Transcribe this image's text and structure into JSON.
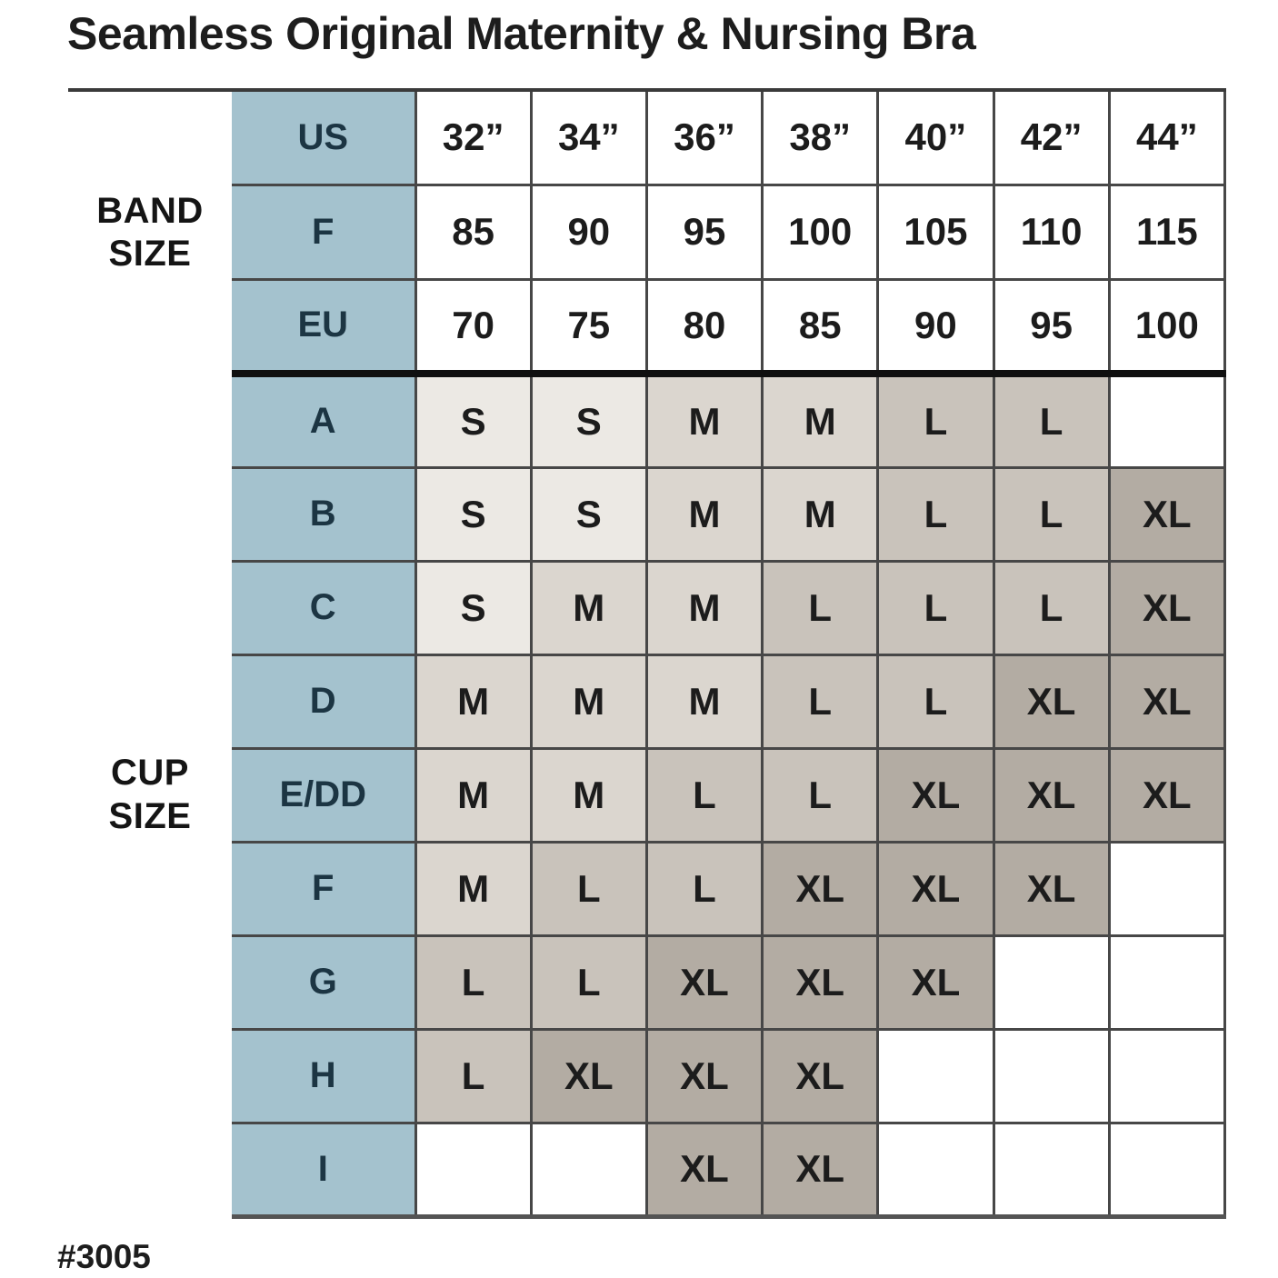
{
  "title": "Seamless Original Maternity & Nursing Bra",
  "footnote": "#3005",
  "colors": {
    "label_column_blue": "#A4C2CE",
    "label_text": "#1C3543",
    "size_s": "#ECE9E4",
    "size_m": "#DBD6CF",
    "size_l": "#C9C3BB",
    "size_xl": "#B3ACA3",
    "grid_line": "#474747",
    "thick_divider": "#101010"
  },
  "chart_data": {
    "type": "table",
    "title": "Seamless Original Maternity & Nursing Bra",
    "band_section": {
      "label": "BAND SIZE",
      "rows": [
        {
          "label": "US",
          "values": [
            "32”",
            "34”",
            "36”",
            "38”",
            "40”",
            "42”",
            "44”"
          ]
        },
        {
          "label": "F",
          "values": [
            "85",
            "90",
            "95",
            "100",
            "105",
            "110",
            "115"
          ]
        },
        {
          "label": "EU",
          "values": [
            "70",
            "75",
            "80",
            "85",
            "90",
            "95",
            "100"
          ]
        }
      ]
    },
    "cup_section": {
      "label": "CUP SIZE",
      "rows": [
        {
          "label": "A",
          "values": [
            "S",
            "S",
            "M",
            "M",
            "L",
            "L",
            ""
          ]
        },
        {
          "label": "B",
          "values": [
            "S",
            "S",
            "M",
            "M",
            "L",
            "L",
            "XL"
          ]
        },
        {
          "label": "C",
          "values": [
            "S",
            "M",
            "M",
            "L",
            "L",
            "L",
            "XL"
          ]
        },
        {
          "label": "D",
          "values": [
            "M",
            "M",
            "M",
            "L",
            "L",
            "XL",
            "XL"
          ]
        },
        {
          "label": "E/DD",
          "values": [
            "M",
            "M",
            "L",
            "L",
            "XL",
            "XL",
            "XL"
          ]
        },
        {
          "label": "F",
          "values": [
            "M",
            "L",
            "L",
            "XL",
            "XL",
            "XL",
            ""
          ]
        },
        {
          "label": "G",
          "values": [
            "L",
            "L",
            "XL",
            "XL",
            "XL",
            "",
            ""
          ]
        },
        {
          "label": "H",
          "values": [
            "L",
            "XL",
            "XL",
            "XL",
            "",
            "",
            ""
          ]
        },
        {
          "label": "I",
          "values": [
            "",
            "",
            "XL",
            "XL",
            "",
            "",
            ""
          ]
        }
      ]
    }
  }
}
